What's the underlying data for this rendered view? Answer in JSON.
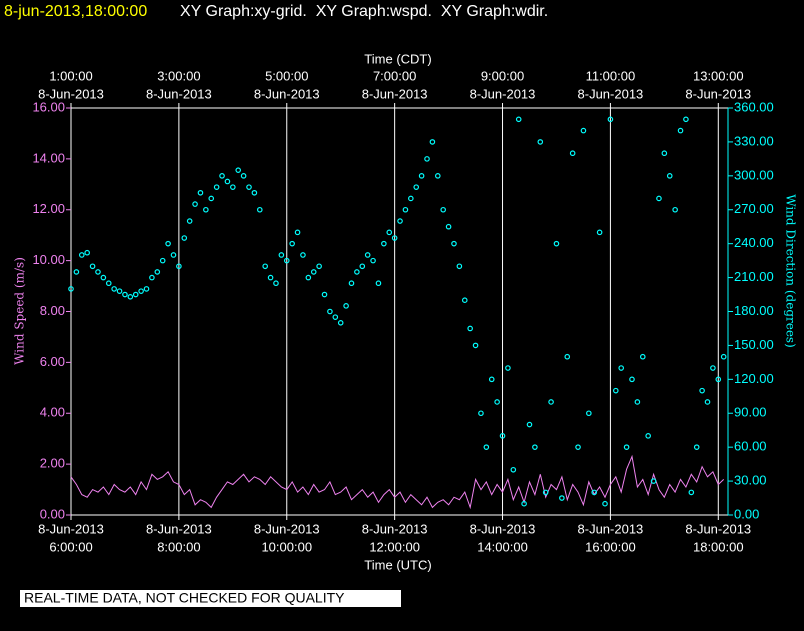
{
  "chart_data": {
    "type": "line",
    "timestamp": "8-jun-2013,18:00:00",
    "title": "XY Graph:xy-grid.  XY Graph:wspd.  XY Graph:wdir.",
    "xlabel": "Time (UTC)",
    "x2label": "Time (CDT)",
    "ylabel": "Wind Speed (m/s)",
    "y2label": "Wind Direction (degrees)",
    "footer": "REAL-TIME DATA, NOT CHECKED FOR QUALITY",
    "grid": true,
    "xlim": [
      6,
      18.18
    ],
    "xticks": [
      {
        "value": 6,
        "label": "6:00:00"
      },
      {
        "value": 8,
        "label": "8:00:00"
      },
      {
        "value": 10,
        "label": "10:00:00"
      },
      {
        "value": 12,
        "label": "12:00:00"
      },
      {
        "value": 14,
        "label": "14:00:00"
      },
      {
        "value": 16,
        "label": "16:00:00"
      },
      {
        "value": 18,
        "label": "18:00:00"
      }
    ],
    "xtick_dates": [
      "8-Jun-2013",
      "8-Jun-2013",
      "8-Jun-2013",
      "8-Jun-2013",
      "8-Jun-2013",
      "8-Jun-2013",
      "8-Jun-2013"
    ],
    "x2ticks": [
      {
        "value": 6,
        "label": "1:00:00"
      },
      {
        "value": 8,
        "label": "3:00:00"
      },
      {
        "value": 10,
        "label": "5:00:00"
      },
      {
        "value": 12,
        "label": "7:00:00"
      },
      {
        "value": 14,
        "label": "9:00:00"
      },
      {
        "value": 16,
        "label": "11:00:00"
      },
      {
        "value": 18,
        "label": "13:00:00"
      }
    ],
    "x2tick_dates": [
      "8-Jun-2013",
      "8-Jun-2013",
      "8-Jun-2013",
      "8-Jun-2013",
      "8-Jun-2013",
      "8-Jun-2013",
      "8-Jun-2013"
    ],
    "ylim": [
      0,
      16
    ],
    "yticks": [
      {
        "value": 0,
        "label": "0.00"
      },
      {
        "value": 2,
        "label": "2.00"
      },
      {
        "value": 4,
        "label": "4.00"
      },
      {
        "value": 6,
        "label": "6.00"
      },
      {
        "value": 8,
        "label": "8.00"
      },
      {
        "value": 10,
        "label": "10.00"
      },
      {
        "value": 12,
        "label": "12.00"
      },
      {
        "value": 14,
        "label": "14.00"
      },
      {
        "value": 16,
        "label": "16.00"
      }
    ],
    "y2lim": [
      0,
      360
    ],
    "y2ticks": [
      {
        "value": 0,
        "label": "0.00"
      },
      {
        "value": 30,
        "label": "30.00"
      },
      {
        "value": 60,
        "label": "60.00"
      },
      {
        "value": 90,
        "label": "90.00"
      },
      {
        "value": 120,
        "label": "120.00"
      },
      {
        "value": 150,
        "label": "150.00"
      },
      {
        "value": 180,
        "label": "180.00"
      },
      {
        "value": 210,
        "label": "210.00"
      },
      {
        "value": 240,
        "label": "240.00"
      },
      {
        "value": 270,
        "label": "270.00"
      },
      {
        "value": 300,
        "label": "300.00"
      },
      {
        "value": 330,
        "label": "330.00"
      },
      {
        "value": 360,
        "label": "360.00"
      }
    ],
    "x": [
      6.0,
      6.1,
      6.2,
      6.3,
      6.4,
      6.5,
      6.6,
      6.7,
      6.8,
      6.9,
      7.0,
      7.1,
      7.2,
      7.3,
      7.4,
      7.5,
      7.6,
      7.7,
      7.8,
      7.9,
      8.0,
      8.1,
      8.2,
      8.3,
      8.4,
      8.5,
      8.6,
      8.7,
      8.8,
      8.9,
      9.0,
      9.1,
      9.2,
      9.3,
      9.4,
      9.5,
      9.6,
      9.7,
      9.8,
      9.9,
      10.0,
      10.1,
      10.2,
      10.3,
      10.4,
      10.5,
      10.6,
      10.7,
      10.8,
      10.9,
      11.0,
      11.1,
      11.2,
      11.3,
      11.4,
      11.5,
      11.6,
      11.7,
      11.8,
      11.9,
      12.0,
      12.1,
      12.2,
      12.3,
      12.4,
      12.5,
      12.6,
      12.7,
      12.8,
      12.9,
      13.0,
      13.1,
      13.2,
      13.3,
      13.4,
      13.5,
      13.6,
      13.7,
      13.8,
      13.9,
      14.0,
      14.1,
      14.2,
      14.3,
      14.4,
      14.5,
      14.6,
      14.7,
      14.8,
      14.9,
      15.0,
      15.1,
      15.2,
      15.3,
      15.4,
      15.5,
      15.6,
      15.7,
      15.8,
      15.9,
      16.0,
      16.1,
      16.2,
      16.3,
      16.4,
      16.5,
      16.6,
      16.7,
      16.8,
      16.9,
      17.0,
      17.1,
      17.2,
      17.3,
      17.4,
      17.5,
      17.6,
      17.7,
      17.8,
      17.9,
      18.0,
      18.1
    ],
    "series": [
      {
        "type": "line",
        "color": "#ee82ee",
        "values": [
          1.5,
          1.2,
          0.8,
          0.7,
          1.0,
          0.9,
          1.1,
          0.8,
          1.2,
          1.0,
          0.9,
          1.1,
          0.8,
          1.3,
          1.0,
          1.6,
          1.4,
          1.5,
          1.7,
          1.3,
          1.2,
          0.8,
          1.0,
          0.4,
          0.6,
          0.5,
          0.3,
          0.7,
          1.0,
          1.3,
          1.2,
          1.4,
          1.6,
          1.3,
          1.5,
          1.4,
          1.2,
          1.5,
          1.3,
          1.1,
          1.0,
          1.3,
          0.9,
          1.1,
          0.8,
          1.2,
          0.9,
          1.0,
          1.3,
          0.8,
          0.9,
          1.1,
          0.6,
          0.8,
          1.0,
          0.7,
          0.9,
          0.5,
          0.8,
          1.0,
          0.7,
          0.9,
          0.5,
          0.8,
          0.6,
          0.4,
          0.7,
          0.3,
          0.5,
          0.6,
          0.4,
          0.7,
          0.6,
          0.9,
          0.3,
          1.4,
          1.0,
          1.3,
          0.8,
          1.2,
          0.9,
          1.4,
          0.6,
          1.1,
          0.5,
          1.3,
          0.8,
          1.6,
          0.7,
          1.2,
          1.0,
          1.5,
          0.6,
          1.2,
          0.9,
          0.4,
          1.3,
          0.8,
          1.1,
          0.7,
          1.2,
          1.5,
          0.9,
          1.8,
          2.3,
          1.1,
          1.4,
          0.8,
          1.6,
          1.0,
          0.7,
          1.2,
          0.9,
          1.4,
          1.1,
          1.6,
          1.3,
          1.9,
          1.5,
          1.7,
          1.2,
          1.4
        ]
      },
      {
        "type": "scatter",
        "axis": "y2",
        "color": "#00ffff",
        "values": [
          200,
          215,
          230,
          232,
          220,
          215,
          210,
          205,
          200,
          198,
          195,
          193,
          195,
          198,
          200,
          210,
          215,
          225,
          240,
          230,
          220,
          245,
          260,
          275,
          285,
          270,
          280,
          290,
          300,
          295,
          290,
          305,
          300,
          290,
          285,
          270,
          220,
          210,
          205,
          230,
          225,
          240,
          250,
          230,
          210,
          215,
          220,
          195,
          180,
          175,
          170,
          185,
          205,
          215,
          220,
          230,
          225,
          205,
          240,
          250,
          245,
          260,
          270,
          280,
          290,
          300,
          315,
          330,
          300,
          270,
          255,
          240,
          220,
          190,
          165,
          150,
          90,
          60,
          120,
          100,
          70,
          130,
          40,
          350,
          10,
          80,
          60,
          330,
          20,
          100,
          240,
          15,
          140,
          320,
          60,
          340,
          90,
          20,
          250,
          10,
          350,
          110,
          130,
          60,
          120,
          100,
          140,
          70,
          30,
          280,
          320,
          300,
          270,
          340,
          350,
          20,
          60,
          110,
          100,
          130,
          120,
          140
        ]
      }
    ]
  }
}
